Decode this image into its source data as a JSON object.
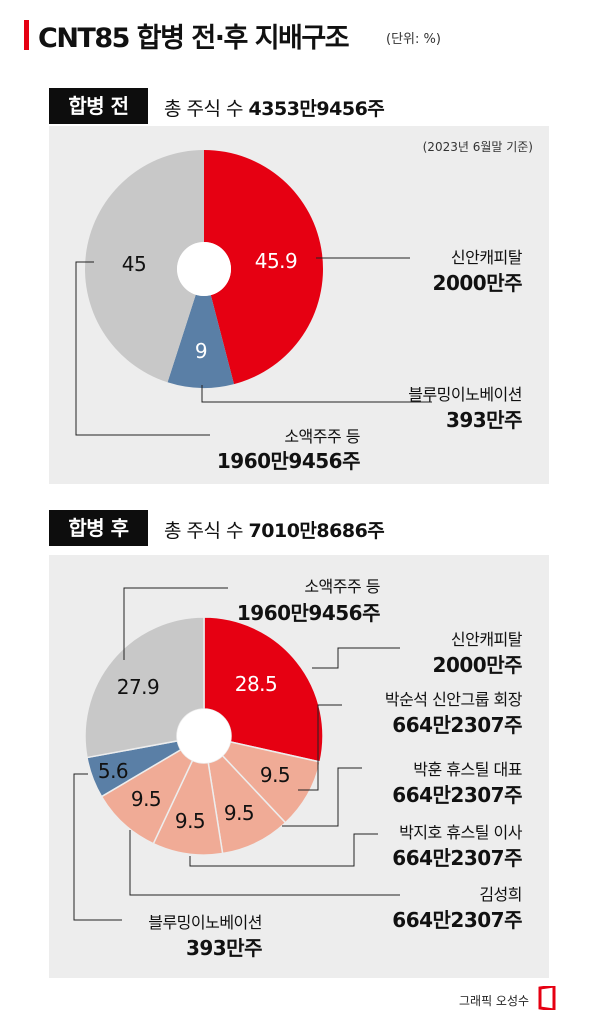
{
  "title": "CNT85 합병 전·후 지배구조",
  "unit": "(단위: %)",
  "before": {
    "badge": "합병 전",
    "total_label": "총 주식 수",
    "total_value": "4353만9456주",
    "basis": "(2023년 6월말 기준)"
  },
  "after": {
    "badge": "합병 후",
    "total_label": "총 주식 수",
    "total_value": "7010만8686주"
  },
  "credit": "그래픽 오성수",
  "colors": {
    "red": "#e60012",
    "blue": "#5a7fa6",
    "gray": "#c8c8c8",
    "salmon": "#f0ab96",
    "panel": "#ededed"
  },
  "chart_data": [
    {
      "type": "pie",
      "name": "합병 전",
      "slices": [
        {
          "label": "신안캐피탈",
          "shares": "2000만주",
          "value": 45.9,
          "display": "45.9",
          "color": "#e60012"
        },
        {
          "label": "블루밍이노베이션",
          "shares": "393만주",
          "value": 9,
          "display": "9",
          "color": "#5a7fa6"
        },
        {
          "label": "소액주주 등",
          "shares": "1960만9456주",
          "value": 45,
          "display": "45",
          "color": "#c8c8c8"
        }
      ]
    },
    {
      "type": "pie",
      "name": "합병 후",
      "slices": [
        {
          "label": "신안캐피탈",
          "shares": "2000만주",
          "value": 28.5,
          "display": "28.5",
          "color": "#e60012"
        },
        {
          "label": "박순석 신안그룹 회장",
          "shares": "664만2307주",
          "value": 9.5,
          "display": "9.5",
          "color": "#f0ab96"
        },
        {
          "label": "박훈 휴스틸 대표",
          "shares": "664만2307주",
          "value": 9.5,
          "display": "9.5",
          "color": "#f0ab96"
        },
        {
          "label": "박지호 휴스틸 이사",
          "shares": "664만2307주",
          "value": 9.5,
          "display": "9.5",
          "color": "#f0ab96"
        },
        {
          "label": "김성희",
          "shares": "664만2307주",
          "value": 9.5,
          "display": "9.5",
          "color": "#f0ab96"
        },
        {
          "label": "블루밍이노베이션",
          "shares": "393만주",
          "value": 5.6,
          "display": "5.6",
          "color": "#5a7fa6"
        },
        {
          "label": "소액주주 등",
          "shares": "1960만9456주",
          "value": 27.9,
          "display": "27.9",
          "color": "#c8c8c8"
        }
      ]
    }
  ]
}
